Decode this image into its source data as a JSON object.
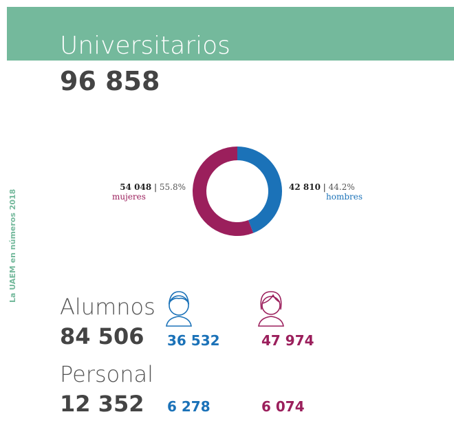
{
  "header": {
    "title": "Universitarios",
    "total": "96 858",
    "side_text": "La UAEM en números 2018"
  },
  "chart_data": {
    "type": "pie",
    "categories": [
      "mujeres",
      "hombres"
    ],
    "values": [
      54048,
      42810
    ],
    "value_labels": [
      "54 048",
      "42 810"
    ],
    "percents": [
      55.8,
      44.2
    ],
    "percent_labels": [
      "55.8%",
      "44.2%"
    ],
    "colors": [
      "#9b1f5c",
      "#1b72b8"
    ],
    "donut": true
  },
  "stats": [
    {
      "label": "Alumnos",
      "total": "84 506",
      "hombres": "36 532",
      "mujeres": "47 974"
    },
    {
      "label": "Personal",
      "total": "12 352",
      "hombres": "6 278",
      "mujeres": "6 074"
    }
  ]
}
